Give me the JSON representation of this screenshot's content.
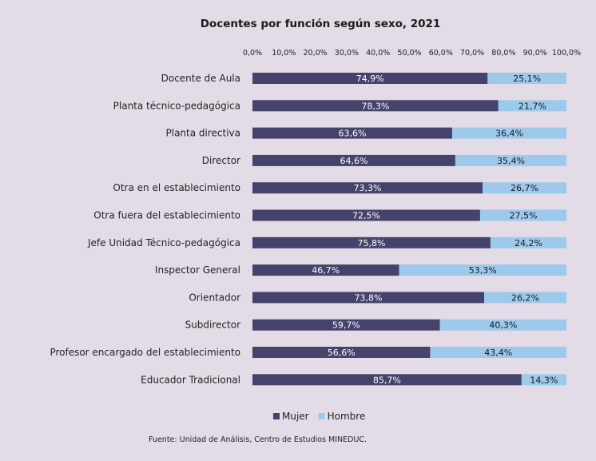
{
  "chart_data": {
    "type": "bar",
    "orientation": "horizontal",
    "stacked": true,
    "title": "Docentes por función según sexo, 2021",
    "categories": [
      "Docente de Aula",
      "Planta técnico-pedagógica",
      "Planta directiva",
      "Director",
      "Otra en el establecimiento",
      "Otra fuera del establecimiento",
      "Jefe Unidad Técnico-pedagógica",
      "Inspector General",
      "Orientador",
      "Subdirector",
      "Profesor encargado del establecimiento",
      "Educador Tradicional"
    ],
    "series": [
      {
        "name": "Mujer",
        "color": "#45426b",
        "values": [
          74.9,
          78.3,
          63.6,
          64.6,
          73.3,
          72.5,
          75.8,
          46.7,
          73.8,
          59.7,
          56.6,
          85.7
        ],
        "labels": [
          "74,9%",
          "78,3%",
          "63,6%",
          "64,6%",
          "73,3%",
          "72,5%",
          "75,8%",
          "46,7%",
          "73,8%",
          "59,7%",
          "56,6%",
          "85,7%"
        ]
      },
      {
        "name": "Hombre",
        "color": "#9dc9ec",
        "values": [
          25.1,
          21.7,
          36.4,
          35.4,
          26.7,
          27.5,
          24.2,
          53.3,
          26.2,
          40.3,
          43.4,
          14.3
        ],
        "labels": [
          "25,1%",
          "21,7%",
          "36,4%",
          "35,4%",
          "26,7%",
          "27,5%",
          "24,2%",
          "53,3%",
          "26,2%",
          "40,3%",
          "43,4%",
          "14,3%"
        ]
      }
    ],
    "xlim": [
      0,
      100
    ],
    "xticks": [
      "0,0%",
      "10,0%",
      "20,0%",
      "30,0%",
      "40,0%",
      "50,0%",
      "60,0%",
      "70,0%",
      "80,0%",
      "90,0%",
      "100,0%"
    ],
    "x_axis_position": "top",
    "grid": false,
    "legend": "bottom"
  },
  "source": "Fuente: Unidad de Análisis, Centro de Estudios MINEDUC."
}
